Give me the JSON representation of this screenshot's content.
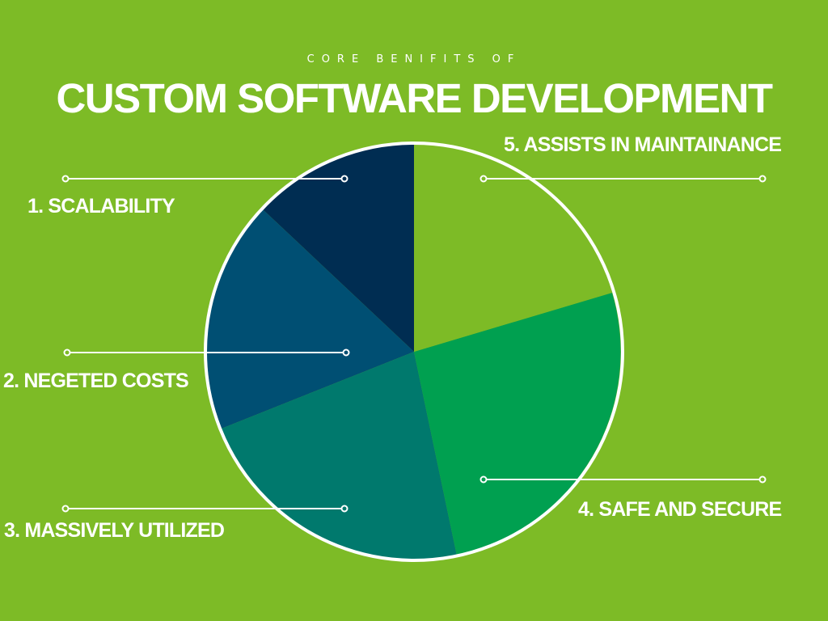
{
  "header": {
    "kicker": "CORE BENIFITS OF",
    "title": "CUSTOM SOFTWARE DEVELOPMENT"
  },
  "colors": {
    "background": "#7dbb26",
    "outline": "#ffffff"
  },
  "benefits": [
    {
      "label": "1. SCALABILITY",
      "color": "#002d52"
    },
    {
      "label": "2. NEGETED COSTS",
      "color": "#004f73"
    },
    {
      "label": "3. MASSIVELY UTILIZED",
      "color": "#00796d"
    },
    {
      "label": "4. SAFE AND SECURE",
      "color": "#00a050"
    },
    {
      "label": "5. ASSISTS IN MAINTAINANCE",
      "color": "#7dbb26"
    }
  ]
}
